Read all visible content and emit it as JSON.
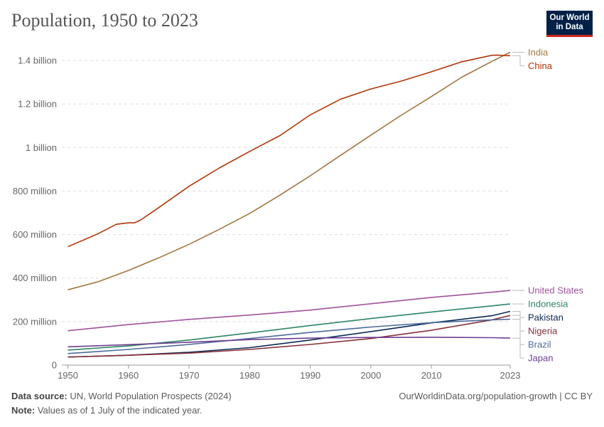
{
  "title": "Population, 1950 to 2023",
  "logo": {
    "line1": "Our World",
    "line2": "in Data"
  },
  "footer": {
    "source_label": "Data source:",
    "source_text": "UN, World Population Prospects (2024)",
    "note_label": "Note:",
    "note_text": "Values as of 1 July of the indicated year.",
    "credit": "OurWorldinData.org/population-growth | CC BY"
  },
  "chart_data": {
    "type": "line",
    "title": "Population, 1950 to 2023",
    "xlabel": "",
    "ylabel": "",
    "xlim": [
      1949,
      2023
    ],
    "ylim": [
      0,
      1400000000
    ],
    "x_ticks": [
      1950,
      1960,
      1970,
      1980,
      1990,
      2000,
      2010,
      2023
    ],
    "x_tick_labels": [
      "1950",
      "1960",
      "1970",
      "1980",
      "1990",
      "2000",
      "2010",
      "2023"
    ],
    "y_ticks": [
      0,
      200000000,
      400000000,
      600000000,
      800000000,
      1000000000,
      1200000000,
      1400000000
    ],
    "y_tick_labels": [
      "0",
      "200 million",
      "400 million",
      "600 million",
      "800 million",
      "1 billion",
      "1.2 billion",
      "1.4 billion"
    ],
    "grid": "horizontal dashed",
    "legend": "right, labels at line ends",
    "series": [
      {
        "name": "India",
        "color": "#a2773f",
        "x": [
          1950,
          1955,
          1960,
          1965,
          1970,
          1975,
          1980,
          1985,
          1990,
          1995,
          2000,
          2005,
          2010,
          2015,
          2020,
          2023
        ],
        "values": [
          346000000,
          383000000,
          435000000,
          493000000,
          555000000,
          624000000,
          697000000,
          781000000,
          870000000,
          964000000,
          1057000000,
          1148000000,
          1234000000,
          1323000000,
          1396000000,
          1438000000
        ]
      },
      {
        "name": "China",
        "color": "#b13507",
        "x": [
          1950,
          1955,
          1958,
          1960,
          1961,
          1962,
          1965,
          1970,
          1975,
          1980,
          1985,
          1990,
          1995,
          2000,
          2005,
          2010,
          2015,
          2020,
          2021,
          2022,
          2023
        ],
        "values": [
          544000000,
          604000000,
          647000000,
          654000000,
          654000000,
          667000000,
          724000000,
          822000000,
          906000000,
          982000000,
          1055000000,
          1150000000,
          1222000000,
          1269000000,
          1305000000,
          1348000000,
          1394000000,
          1424000000,
          1425000000,
          1423000000,
          1422000000
        ]
      },
      {
        "name": "United States",
        "color": "#a0519b",
        "x": [
          1950,
          1960,
          1970,
          1980,
          1990,
          2000,
          2010,
          2020,
          2023
        ],
        "values": [
          158000000,
          186000000,
          210000000,
          230000000,
          253000000,
          282000000,
          311000000,
          335000000,
          343000000
        ]
      },
      {
        "name": "Indonesia",
        "color": "#2d8466",
        "x": [
          1950,
          1960,
          1970,
          1980,
          1990,
          2000,
          2010,
          2020,
          2023
        ],
        "values": [
          69000000,
          88000000,
          115000000,
          148000000,
          182000000,
          214000000,
          244000000,
          272000000,
          281000000
        ]
      },
      {
        "name": "Pakistan",
        "color": "#0b2a54",
        "x": [
          1950,
          1960,
          1970,
          1980,
          1990,
          2000,
          2010,
          2020,
          2023
        ],
        "values": [
          37000000,
          45000000,
          59000000,
          80000000,
          115000000,
          154000000,
          194000000,
          227000000,
          247000000
        ]
      },
      {
        "name": "Nigeria",
        "color": "#883039",
        "x": [
          1950,
          1960,
          1970,
          1980,
          1990,
          2000,
          2010,
          2020,
          2023
        ],
        "values": [
          37000000,
          45000000,
          55000000,
          72000000,
          95000000,
          122000000,
          160000000,
          208000000,
          228000000
        ]
      },
      {
        "name": "Brazil",
        "color": "#4c6a9c",
        "x": [
          1950,
          1960,
          1970,
          1980,
          1990,
          2000,
          2010,
          2020,
          2023
        ],
        "values": [
          53000000,
          72000000,
          95000000,
          122000000,
          150000000,
          175000000,
          195000000,
          208000000,
          211000000
        ]
      },
      {
        "name": "Japan",
        "color": "#6d3e91",
        "x": [
          1950,
          1960,
          1970,
          1980,
          1990,
          2000,
          2010,
          2020,
          2023
        ],
        "values": [
          84000000,
          94000000,
          105000000,
          117000000,
          124000000,
          127000000,
          128000000,
          126000000,
          124000000
        ]
      }
    ]
  }
}
